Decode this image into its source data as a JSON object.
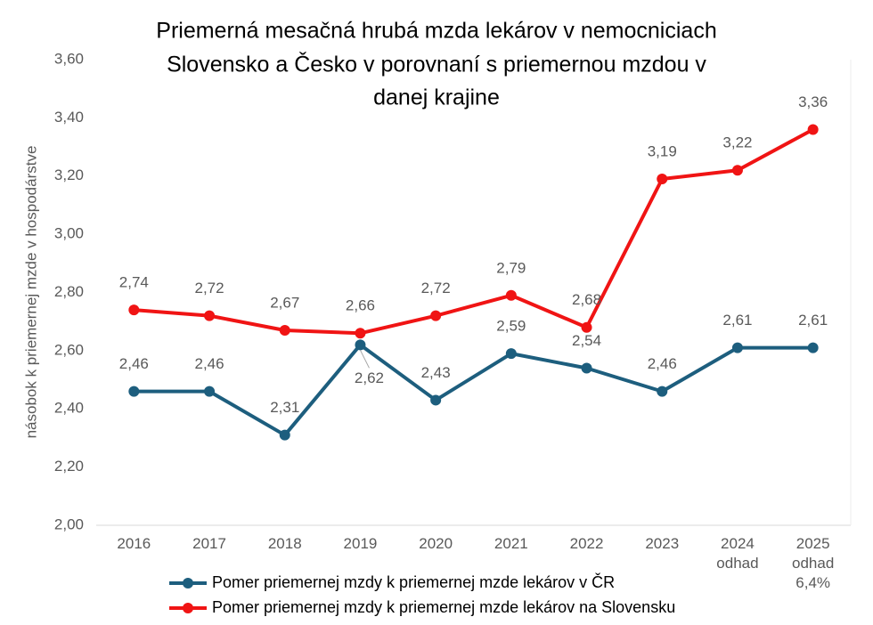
{
  "chart_data": {
    "type": "line",
    "title": [
      "Priemerná mesačná hrubá mzda lekárov v nemocniciach",
      "Slovensko a Česko v porovnaní s priemernou mzdou v",
      "danej krajine"
    ],
    "y_label": "násobok k priemernej mzde v hospodárstve",
    "categories": [
      "2016",
      "2017",
      "2018",
      "2019",
      "2020",
      "2021",
      "2022",
      "2023",
      "2024\nodhad",
      "2025\nodhad\n6,4%"
    ],
    "series": [
      {
        "name": "Pomer priemernej mzdy k priemernej mzde lekárov v ČR",
        "color": "#1d5e7e",
        "values": [
          2.46,
          2.46,
          2.31,
          2.62,
          2.43,
          2.59,
          2.54,
          2.46,
          2.61,
          2.61
        ],
        "value_labels": [
          "2,46",
          "2,46",
          "2,31",
          "2,62",
          "2,43",
          "2,59",
          "2,54",
          "2,46",
          "2,61",
          "2,61"
        ]
      },
      {
        "name": "Pomer priemernej mzdy k priemernej mzde lekárov na Slovensku",
        "color": "#f01414",
        "values": [
          2.74,
          2.72,
          2.67,
          2.66,
          2.72,
          2.79,
          2.68,
          3.19,
          3.22,
          3.36
        ],
        "value_labels": [
          "2,74",
          "2,72",
          "2,67",
          "2,66",
          "2,72",
          "2,79",
          "2,68",
          "3,19",
          "3,22",
          "3,36"
        ]
      }
    ],
    "ylim": [
      2.0,
      3.6
    ],
    "yticks": [
      {
        "value": 2.0,
        "label": "2,00"
      },
      {
        "value": 2.2,
        "label": "2,20"
      },
      {
        "value": 2.4,
        "label": "2,40"
      },
      {
        "value": 2.6,
        "label": "2,60"
      },
      {
        "value": 2.8,
        "label": "2,80"
      },
      {
        "value": 3.0,
        "label": "3,00"
      },
      {
        "value": 3.2,
        "label": "3,20"
      },
      {
        "value": 3.4,
        "label": "3,40"
      },
      {
        "value": 3.6,
        "label": "3,60"
      }
    ]
  }
}
